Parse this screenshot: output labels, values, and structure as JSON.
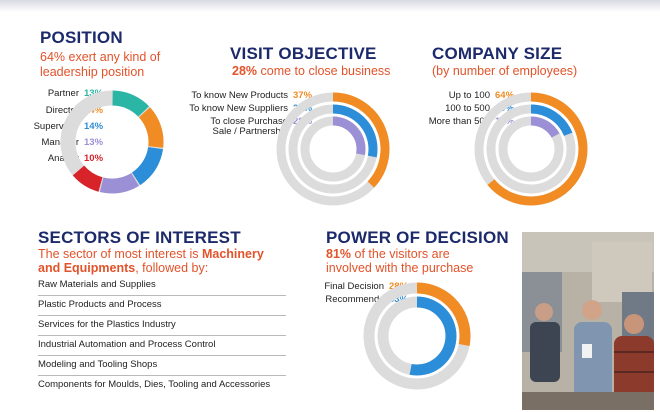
{
  "position": {
    "title": "POSITION",
    "subtitle_line1": "64% exert any kind of",
    "subtitle_line2": "leadership position",
    "items": [
      {
        "label": "Partner",
        "pct": "13%",
        "value": 13,
        "color": "#2bb5a4"
      },
      {
        "label": "Director",
        "pct": "14%",
        "value": 14,
        "color": "#f18b23"
      },
      {
        "label": "Supervisor",
        "pct": "14%",
        "value": 14,
        "color": "#2c8ed8"
      },
      {
        "label": "Manager",
        "pct": "13%",
        "value": 13,
        "color": "#9b8fd6"
      },
      {
        "label": "Analyst",
        "pct": "10%",
        "value": 10,
        "color": "#d8232a"
      }
    ]
  },
  "visit": {
    "title": "VISIT OBJECTIVE",
    "subtitle_pct": "28%",
    "subtitle_rest": " come to close business",
    "items": [
      {
        "label": "To know New Products",
        "pct": "37%",
        "value": 37,
        "color": "#f18b23"
      },
      {
        "label": "To know New Suppliers",
        "pct": "28%",
        "value": 28,
        "color": "#2c8ed8"
      },
      {
        "label_line1": "To close Purchase",
        "label_line2": "Sale / Partnership",
        "pct": "28%",
        "value": 28,
        "color": "#9b8fd6"
      }
    ]
  },
  "company": {
    "title": "COMPANY SIZE",
    "subtitle": "(by number of employees)",
    "items": [
      {
        "label": "Up to 100",
        "pct": "64%",
        "value": 64,
        "color": "#f18b23"
      },
      {
        "label": "100 to 500",
        "pct": "19%",
        "value": 19,
        "color": "#2c8ed8"
      },
      {
        "label": "More than 500",
        "pct": "17%",
        "value": 17,
        "color": "#9b8fd6"
      }
    ]
  },
  "sectors": {
    "title": "SECTORS OF INTEREST",
    "sub_line1_a": "The sector of most interest is ",
    "sub_line1_b": "Machinery",
    "sub_line2_b": "and Equipments",
    "sub_line2_c": ", followed by:",
    "items": [
      "Raw Materials and Supplies",
      "Plastic Products and Process",
      "Services for the Plastics Industry",
      "Industrial Automation and Process Control",
      "Modeling and Tooling Shops",
      "Components for Moulds, Dies, Tooling and Accessories"
    ]
  },
  "decision": {
    "title": "POWER OF DECISION",
    "subtitle_pct": "81%",
    "subtitle_rest1": " of the visitors are",
    "subtitle_line2": "involved with the purchase",
    "items": [
      {
        "label": "Final Decision",
        "pct": "28%",
        "value": 28,
        "color": "#f18b23"
      },
      {
        "label": "Recommends",
        "pct": "53%",
        "value": 53,
        "color": "#2c8ed8"
      }
    ]
  },
  "colors": {
    "heading": "#1c2a6b",
    "accent": "#e2532a",
    "track": "#dcdcdc"
  }
}
